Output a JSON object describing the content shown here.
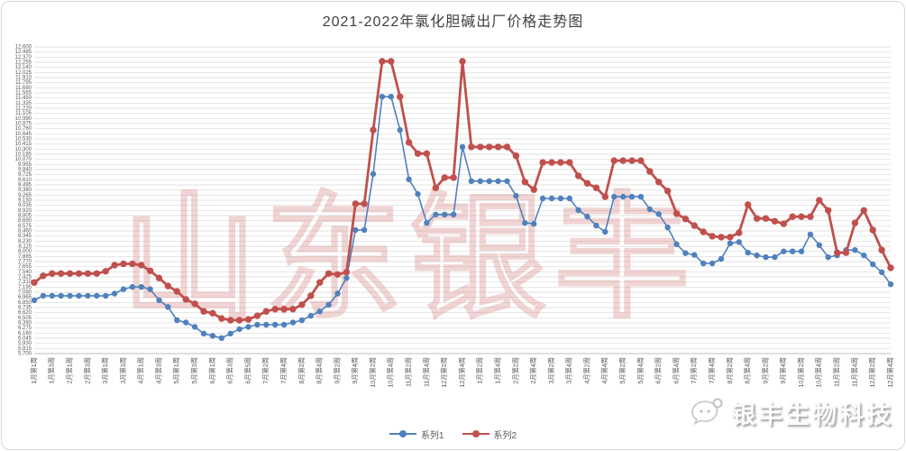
{
  "title": "2021-2022年氯化胆碱出厂价格走势图",
  "watermarks": {
    "center": "山东银丰",
    "bottom_right": "银丰生物科技",
    "logo": "wechat-logo"
  },
  "legend": [
    {
      "label": "系列1",
      "color": "#4F81BD"
    },
    {
      "label": "系列2",
      "color": "#C0504D"
    }
  ],
  "colors": {
    "series1": "#4F81BD",
    "series2": "#C0504D",
    "gridline": "#d9d9d9",
    "axis_line": "#bfbfbf",
    "tick_text": "#595959",
    "title_text": "#3f3f3f",
    "watermark_pink": "rgba(217,150,148,0.40)"
  },
  "chart_data": {
    "type": "line",
    "title": "2021-2022年氯化胆碱出厂价格走势图",
    "xlabel": "",
    "ylabel": "",
    "grid": "horizontal",
    "legend_position": "bottom",
    "n_points": 97,
    "x_label_every": 2,
    "x_labels": [
      "1月第1周",
      "1月第3周",
      "2月第1周",
      "2月第3周",
      "3月第1周",
      "3月第3周",
      "4月第1周",
      "4月第3周",
      "5月第1周",
      "5月第3周",
      "6月第1周",
      "6月第3周",
      "6月第5周",
      "7月第2周",
      "7月第4周",
      "8月第2周",
      "8月第4周",
      "9月第2周",
      "9月第4周",
      "10月第2周",
      "10月第4周",
      "11月第2周",
      "11月第4周",
      "12月第2周",
      "12月第4周",
      "1月第2周",
      "1月第4周",
      "2月第2周",
      "2月第4周",
      "3月第2周",
      "3月第4周",
      "4月第2周",
      "4月第4周",
      "5月第2周",
      "5月第4周",
      "6月第2周",
      "6月第4周",
      "7月第2周",
      "7月第4周",
      "8月第2周",
      "8月第4周",
      "9月第2周",
      "9月第4周",
      "10月第2周",
      "10月第4周",
      "11月第2周",
      "11月第4周",
      "12月第2周",
      "12月第4周"
    ],
    "y_axis": {
      "min": 5700,
      "max": 12600,
      "step": 115,
      "format": "thousands-comma"
    },
    "series": [
      {
        "name": "系列1",
        "color": "#4F81BD",
        "marker": "circle",
        "line_width": 1.6,
        "marker_r": 3.2,
        "values": [
          6900,
          7000,
          7000,
          7000,
          7000,
          7000,
          7000,
          7000,
          7000,
          7050,
          7150,
          7200,
          7200,
          7150,
          6900,
          6750,
          6450,
          6400,
          6300,
          6150,
          6100,
          6050,
          6150,
          6250,
          6300,
          6350,
          6350,
          6350,
          6350,
          6400,
          6450,
          6550,
          6650,
          6800,
          7050,
          7400,
          8480,
          8480,
          9740,
          11480,
          11480,
          10730,
          9620,
          9290,
          8640,
          8830,
          8830,
          8830,
          10350,
          9580,
          9580,
          9580,
          9580,
          9580,
          9250,
          8640,
          8620,
          9190,
          9190,
          9190,
          9190,
          8930,
          8780,
          8580,
          8440,
          9230,
          9230,
          9230,
          9230,
          8950,
          8840,
          8540,
          8160,
          7960,
          7920,
          7730,
          7730,
          7830,
          8180,
          8210,
          7970,
          7910,
          7870,
          7870,
          8000,
          8000,
          8000,
          8380,
          8140,
          7870,
          7910,
          8030,
          8030,
          7910,
          7710,
          7530,
          7260
        ]
      },
      {
        "name": "系列2",
        "color": "#C0504D",
        "marker": "circle",
        "line_width": 2.8,
        "marker_r": 3.7,
        "values": [
          7300,
          7450,
          7500,
          7500,
          7500,
          7500,
          7500,
          7500,
          7550,
          7690,
          7720,
          7720,
          7690,
          7560,
          7400,
          7220,
          7100,
          6920,
          6820,
          6650,
          6610,
          6490,
          6450,
          6450,
          6470,
          6550,
          6650,
          6700,
          6700,
          6700,
          6800,
          7000,
          7300,
          7500,
          7480,
          7530,
          9070,
          9070,
          10730,
          12275,
          12275,
          11480,
          10450,
          10200,
          10200,
          9430,
          9660,
          9660,
          12275,
          10350,
          10350,
          10350,
          10350,
          10350,
          10150,
          9560,
          9390,
          10000,
          10000,
          10000,
          10000,
          9700,
          9530,
          9430,
          9230,
          10040,
          10040,
          10040,
          10040,
          9800,
          9560,
          9360,
          8850,
          8730,
          8580,
          8440,
          8340,
          8320,
          8320,
          8420,
          9050,
          8740,
          8740,
          8680,
          8620,
          8780,
          8780,
          8780,
          9150,
          8920,
          7970,
          7970,
          8640,
          8920,
          8480,
          8030,
          7630
        ]
      }
    ]
  }
}
